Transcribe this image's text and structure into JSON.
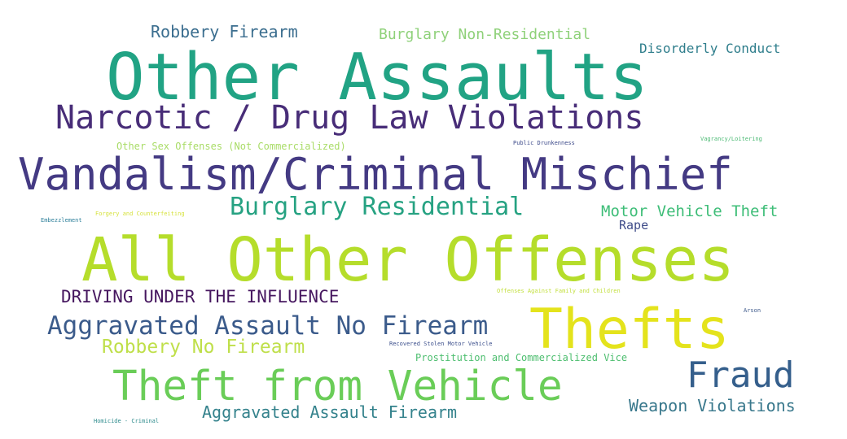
{
  "words": [
    {
      "text": "Robbery Firearm",
      "color": "#3b6e8f"
    },
    {
      "text": "Burglary Non-Residential",
      "color": "#8fd17a"
    },
    {
      "text": "Disorderly Conduct",
      "color": "#2f7e8c"
    },
    {
      "text": "Other Assaults",
      "color": "#21a384"
    },
    {
      "text": "Narcotic / Drug Law Violations",
      "color": "#482d78"
    },
    {
      "text": "Other Sex Offenses (Not Commercialized)",
      "color": "#a9dc67"
    },
    {
      "text": "Public Drunkenness",
      "color": "#3d4a8a"
    },
    {
      "text": "Vagrancy/Loitering",
      "color": "#4cba74"
    },
    {
      "text": "Vandalism/Criminal Mischief",
      "color": "#443a83"
    },
    {
      "text": "Burglary Residential",
      "color": "#26a282"
    },
    {
      "text": "Motor Vehicle Theft",
      "color": "#3dbd77"
    },
    {
      "text": "Embezzlement",
      "color": "#2c7f9a"
    },
    {
      "text": "Forgery and Counterfeiting",
      "color": "#d6e23d"
    },
    {
      "text": "Rape",
      "color": "#3f4c89"
    },
    {
      "text": "All Other Offenses",
      "color": "#b5dd2b"
    },
    {
      "text": "DRIVING UNDER THE INFLUENCE",
      "color": "#46175f"
    },
    {
      "text": "Offenses Against Family and Children",
      "color": "#c2df3b"
    },
    {
      "text": "Aggravated Assault No Firearm",
      "color": "#3b5b8b"
    },
    {
      "text": "Thefts",
      "color": "#e4e31c"
    },
    {
      "text": "Arson",
      "color": "#3e5a8b"
    },
    {
      "text": "Robbery No Firearm",
      "color": "#bfdf4a"
    },
    {
      "text": "Recovered Stolen Motor Vehicle",
      "color": "#3c4f8c"
    },
    {
      "text": "Prostitution and Commercialized Vice",
      "color": "#4dbe6f"
    },
    {
      "text": "Fraud",
      "color": "#355f8c"
    },
    {
      "text": "Theft from Vehicle",
      "color": "#6acd58"
    },
    {
      "text": "Weapon Violations",
      "color": "#39788c"
    },
    {
      "text": "Aggravated Assault Firearm",
      "color": "#34828c"
    },
    {
      "text": "Homicide - Criminal",
      "color": "#2d8b8c"
    }
  ]
}
